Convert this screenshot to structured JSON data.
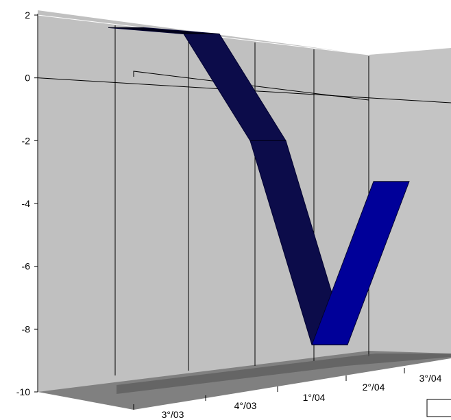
{
  "chart_data": {
    "type": "line",
    "style": "3d-ribbon",
    "title": "",
    "xlabel": "",
    "ylabel": "",
    "categories": [
      "3°/03",
      "4°/03",
      "1°/04",
      "2°/04",
      "3°/04"
    ],
    "y_ticks": [
      "2",
      "0",
      "-2",
      "-4",
      "-6",
      "-8",
      "-10"
    ],
    "ylim": [
      -10,
      2
    ],
    "grid": true,
    "legend": "bottom-right, cut off",
    "series": [
      {
        "values": [
          1.6,
          1.4,
          -2.0,
          -8.5,
          -3.3
        ]
      }
    ],
    "colors": {
      "wall": "#c0c0c0",
      "floor": "#808080",
      "ribbon_front": "#0c0c4a",
      "ribbon_top": "#000018",
      "ribbon_last_front": "#000099",
      "grid_line": "#000000"
    }
  }
}
